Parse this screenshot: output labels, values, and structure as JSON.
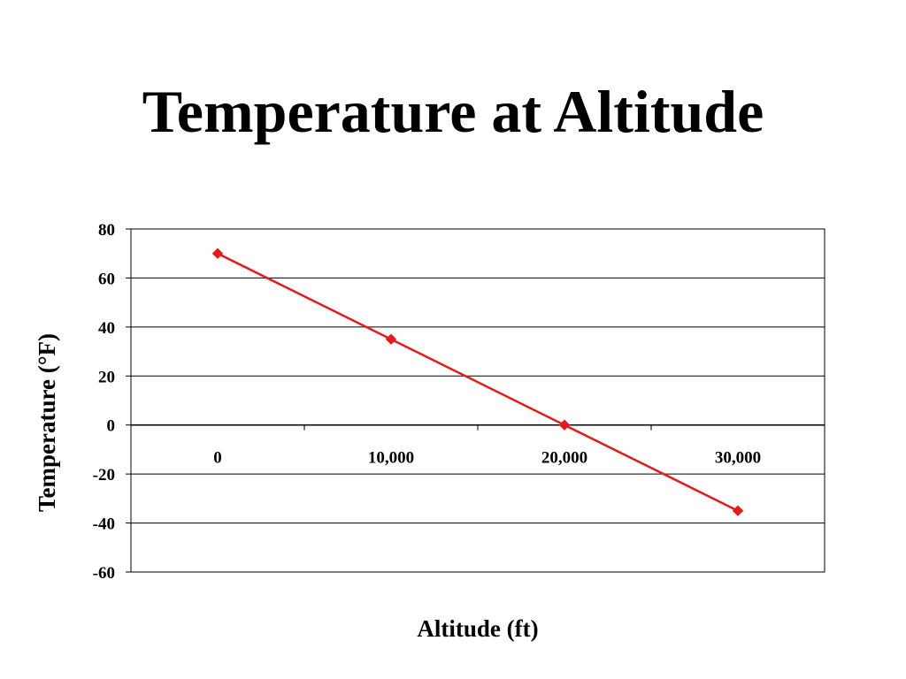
{
  "chart_data": {
    "type": "line",
    "title": "Temperature at Altitude",
    "xlabel": "Altitude (ft)",
    "ylabel": "Temperature (°F)",
    "categories": [
      "0",
      "10,000",
      "20,000",
      "30,000"
    ],
    "x": [
      0,
      10000,
      20000,
      30000
    ],
    "series": [
      {
        "values": [
          70,
          35,
          0,
          -35
        ],
        "color": "#e31b1b"
      }
    ],
    "ylim": [
      -60,
      80
    ],
    "yticks": [
      80,
      60,
      40,
      20,
      0,
      -20,
      -40,
      -60
    ],
    "grid": true,
    "legend": "none"
  }
}
